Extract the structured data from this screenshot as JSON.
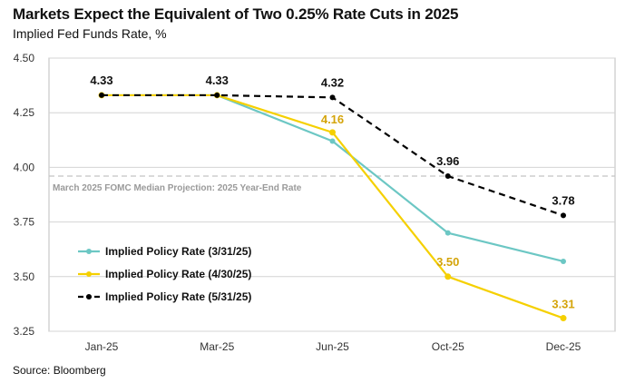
{
  "header": {
    "title": "Markets Expect the Equivalent of Two 0.25% Rate Cuts in 2025",
    "subtitle": "Implied Fed Funds Rate, %"
  },
  "footer": {
    "source": "Source: Bloomberg"
  },
  "chart_data": {
    "type": "line",
    "title": "Markets Expect the Equivalent of Two 0.25% Rate Cuts in 2025",
    "ylabel": "Implied Fed Funds Rate, %",
    "xlabel": "",
    "categories": [
      "Jan-25",
      "Mar-25",
      "Jun-25",
      "Oct-25",
      "Dec-25"
    ],
    "ylim": [
      3.25,
      4.5
    ],
    "yticks": [
      "4.50",
      "4.25",
      "4.00",
      "3.75",
      "3.50",
      "3.25"
    ],
    "grid": true,
    "legend_position": "bottom-left",
    "reference_line": {
      "value": 3.96,
      "label": "March 2025 FOMC Median Projection: 2025 Year-End Rate",
      "color": "#c4c4c4"
    },
    "series": [
      {
        "name": "Implied Policy Rate (3/31/25)",
        "color": "#6cc7c4",
        "dash": false,
        "values": [
          4.33,
          4.33,
          4.12,
          3.7,
          3.57
        ],
        "labels": [
          "",
          "",
          "",
          "",
          ""
        ]
      },
      {
        "name": "Implied Policy Rate (4/30/25)",
        "color": "#f5d000",
        "dash": false,
        "values": [
          4.33,
          4.33,
          4.16,
          3.5,
          3.31
        ],
        "labels": [
          "",
          "",
          "4.16",
          "3.50",
          "3.31"
        ],
        "label_color": "#d4a40a"
      },
      {
        "name": "Implied Policy Rate (5/31/25)",
        "color": "#000000",
        "dash": true,
        "values": [
          4.33,
          4.33,
          4.32,
          3.96,
          3.78
        ],
        "labels": [
          "4.33",
          "4.33",
          "4.32",
          "3.96",
          "3.78"
        ],
        "label_color": "#111111"
      }
    ]
  }
}
